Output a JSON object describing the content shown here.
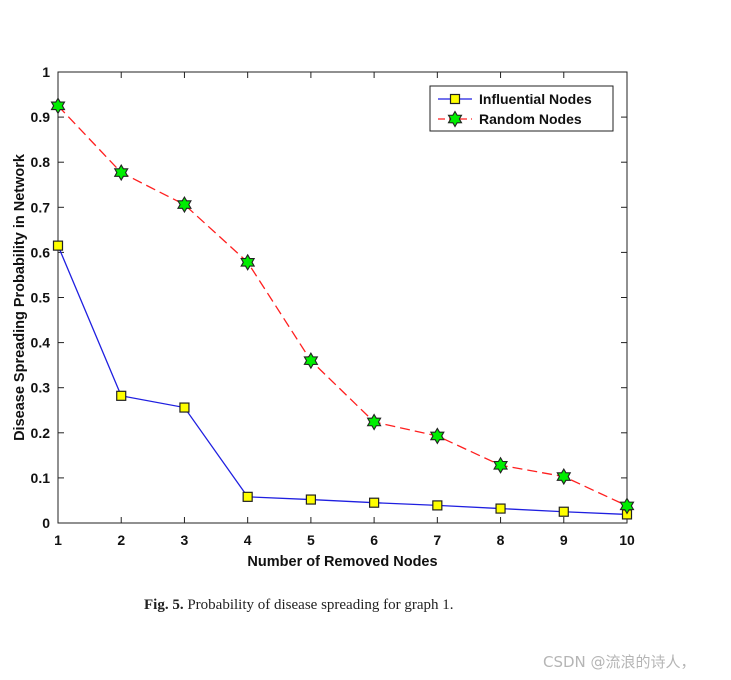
{
  "chart_data": {
    "type": "line",
    "title": "",
    "xlabel": "Number of Removed Nodes",
    "ylabel": "Disease Spreading Probability in Network",
    "x": [
      1,
      2,
      3,
      4,
      5,
      6,
      7,
      8,
      9,
      10
    ],
    "xticks": [
      "1",
      "2",
      "3",
      "4",
      "5",
      "6",
      "7",
      "8",
      "9",
      "10"
    ],
    "yticks": [
      "0",
      "0.1",
      "0.2",
      "0.3",
      "0.4",
      "0.5",
      "0.6",
      "0.7",
      "0.8",
      "0.9",
      "1"
    ],
    "xlim": [
      1,
      10
    ],
    "ylim": [
      0,
      1
    ],
    "grid": false,
    "legend_position": "top-right",
    "series": [
      {
        "name": "Influential Nodes",
        "color": "#1f1fe0",
        "line_style": "solid",
        "marker": "square",
        "marker_color": "#ffff00",
        "values": [
          0.615,
          0.282,
          0.256,
          0.058,
          0.052,
          0.045,
          0.039,
          0.032,
          0.025,
          0.019
        ]
      },
      {
        "name": "Random Nodes",
        "color": "#ff1f1f",
        "line_style": "dashed",
        "marker": "hexagram",
        "marker_color": "#00ee00",
        "values": [
          0.925,
          0.777,
          0.706,
          0.578,
          0.36,
          0.224,
          0.193,
          0.128,
          0.103,
          0.038
        ]
      }
    ]
  },
  "caption": {
    "label": "Fig. 5.",
    "text": " Probability of disease spreading for graph 1."
  },
  "watermark": "CSDN @流浪的诗人，"
}
